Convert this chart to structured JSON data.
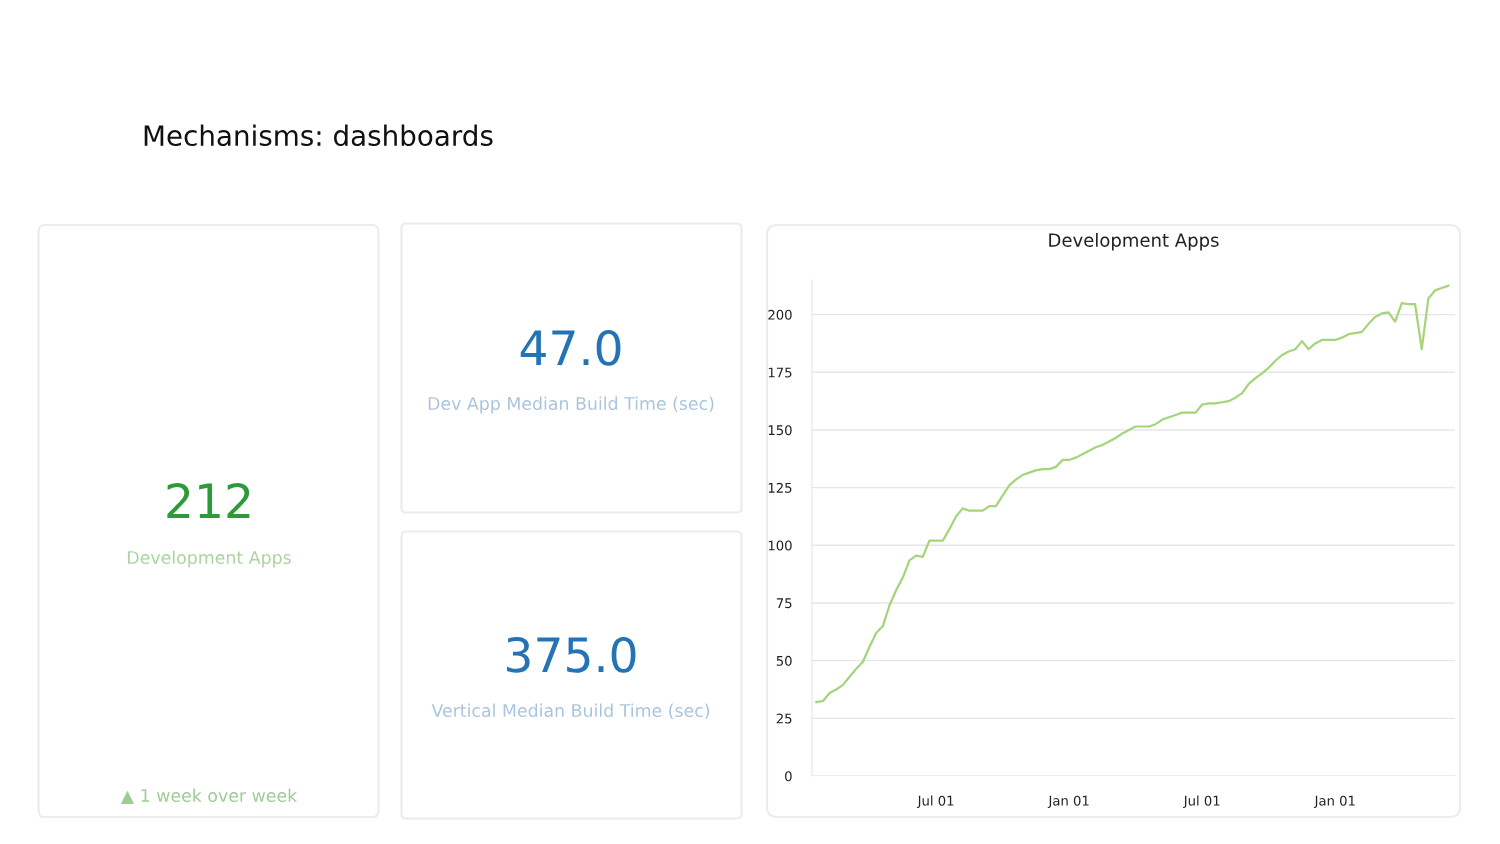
{
  "chart_data": {
    "type": "line",
    "title": "Development Apps",
    "grid": "y",
    "marker": "none",
    "line_style": "solid",
    "annotations": [
      "Mechanisms: dashboards",
      "212",
      "Development Apps",
      "▲ 1 week over week",
      "47.0",
      "Dev App Median Build Time (sec)",
      "375.0",
      "Vertical Median Build Time (sec)"
    ],
    "categories": [
      null,
      null,
      null,
      null,
      null,
      null,
      null,
      null,
      null,
      null,
      null,
      null,
      null,
      null,
      null,
      null,
      null,
      null,
      "Jul 01",
      null,
      null,
      null,
      null,
      null,
      null,
      null,
      null,
      null,
      null,
      null,
      null,
      null,
      null,
      null,
      null,
      null,
      null,
      null,
      "Jan 01",
      null,
      null,
      null,
      null,
      null,
      null,
      null,
      null,
      null,
      null,
      null,
      null,
      null,
      null,
      null,
      null,
      null,
      null,
      null,
      "Jul 01",
      null,
      null,
      null,
      null,
      null,
      null,
      null,
      null,
      null,
      null,
      null,
      null,
      null,
      null,
      null,
      null,
      null,
      null,
      null,
      "Jan 01",
      null,
      null,
      null,
      null,
      null,
      null,
      null,
      null,
      null,
      null,
      null,
      null,
      null,
      null,
      null,
      null,
      null
    ],
    "ylim": [
      0,
      215
    ],
    "yticks": [
      0,
      25,
      50,
      75,
      100,
      125,
      150,
      175,
      200
    ],
    "series": [
      {
        "color": "#a5d47a",
        "values": [
          32,
          32.5,
          36,
          37.5,
          39.5,
          43,
          46.5,
          49.5,
          56,
          62,
          65,
          74,
          80.5,
          86,
          93.5,
          95.5,
          95,
          102,
          102,
          102,
          107,
          112.5,
          116,
          115,
          115,
          115,
          117,
          117,
          121.5,
          126,
          128.5,
          130.5,
          131.5,
          132.5,
          133,
          133,
          134,
          137,
          137,
          138,
          139.5,
          141,
          142.5,
          143.5,
          145,
          146.5,
          148.5,
          150,
          151.5,
          151.5,
          151.5,
          152.5,
          154.5,
          155.5,
          156.5,
          157.5,
          157.5,
          157.5,
          161,
          161.5,
          161.5,
          162,
          162.5,
          164,
          166,
          170,
          172.5,
          174.5,
          177,
          180,
          182.5,
          184,
          185,
          188.5,
          185,
          187.5,
          189,
          189,
          189,
          190,
          191.5,
          192,
          192.5,
          196,
          199,
          200.5,
          201,
          197,
          205,
          204.5,
          204.5,
          185,
          207,
          210.5,
          211.5,
          212.5
        ]
      }
    ]
  }
}
